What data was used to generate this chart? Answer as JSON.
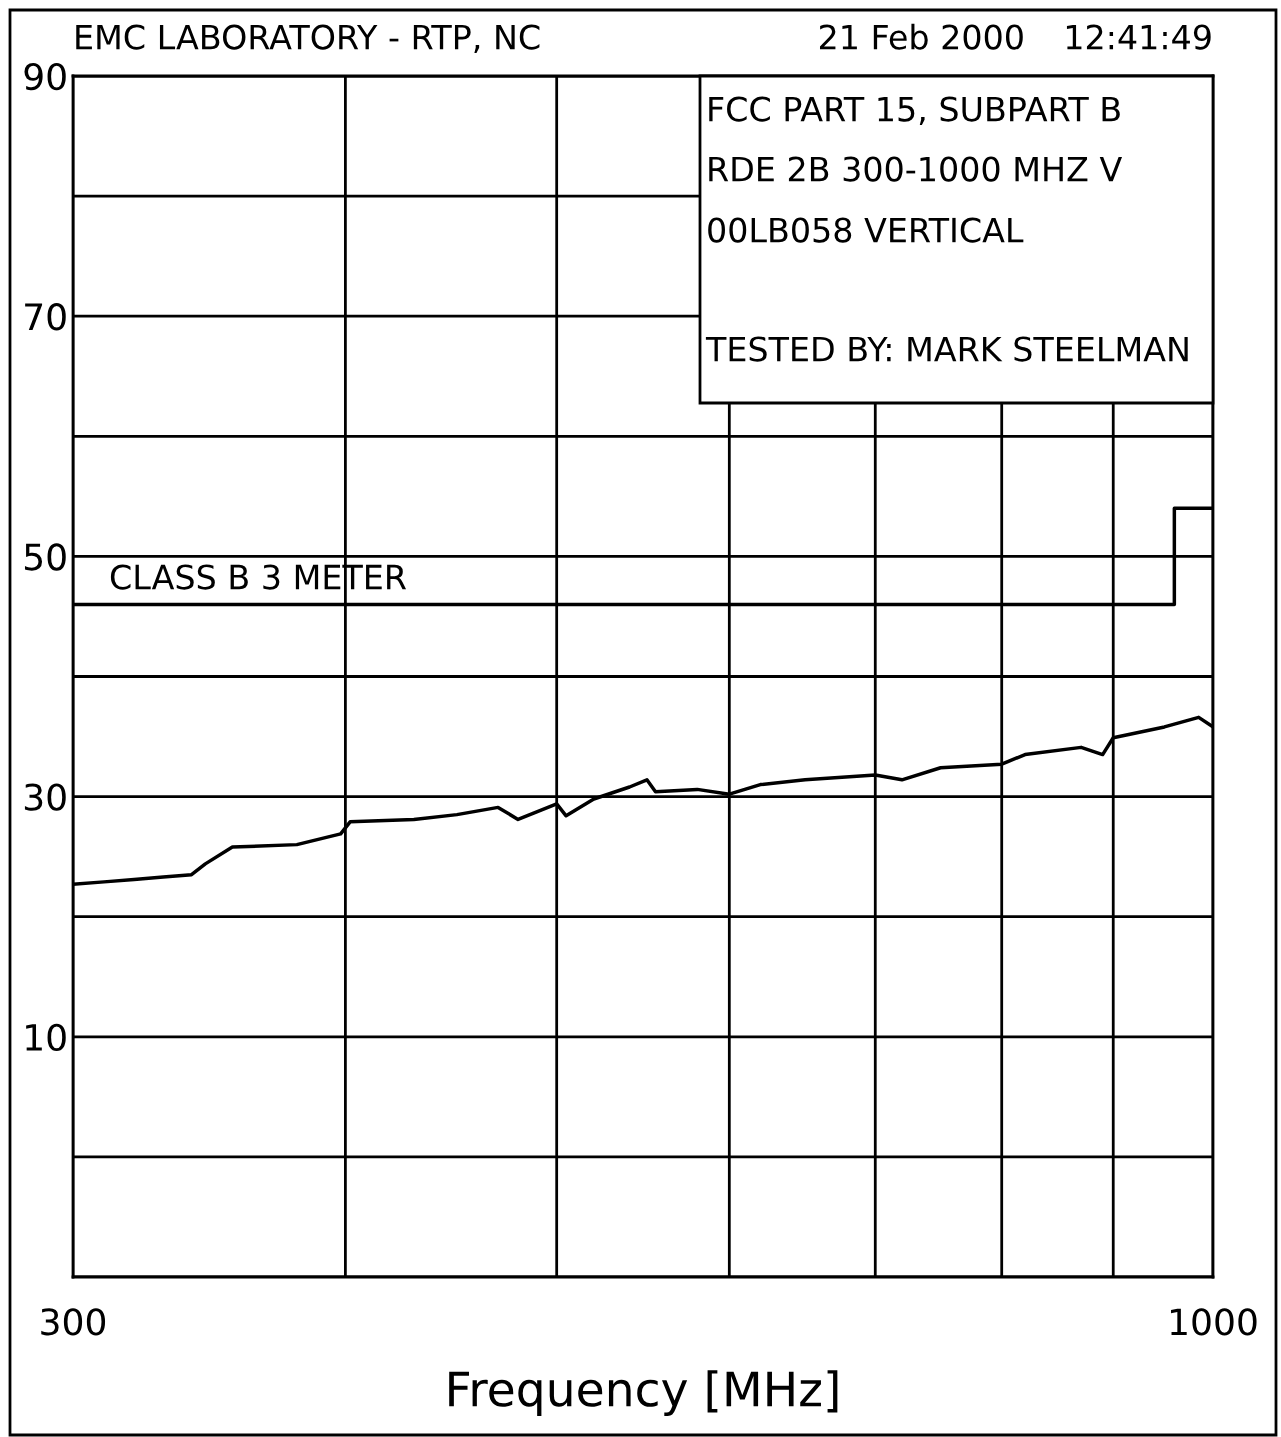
{
  "chart_data": {
    "type": "line",
    "title": "EMC LABORATORY - RTP, NC",
    "xlabel": "Frequency [MHz]",
    "annotations": [
      "21 Feb 2000",
      "12:41:49",
      "FCC PART 15, SUBPART B",
      "RDE 2B 300-1000 MHZ V",
      "00LB058 VERTICAL",
      "TESTED BY: MARK STEELMAN",
      {
        "text": "CLASS B 3 METER",
        "x": 308,
        "y": 46
      }
    ],
    "log": "x",
    "xlim": [
      300,
      1000
    ],
    "xticks": [
      300,
      {
        "value": 400,
        "label": null
      },
      {
        "value": 500,
        "label": null
      },
      {
        "value": 600,
        "label": null
      },
      {
        "value": 700,
        "label": null
      },
      {
        "value": 800,
        "label": null
      },
      {
        "value": 900,
        "label": null
      },
      1000
    ],
    "ylim": [
      -10,
      90
    ],
    "yticks": [
      {
        "value": -10,
        "label": null
      },
      {
        "value": 0,
        "label": null
      },
      10,
      {
        "value": 20,
        "label": null
      },
      30,
      {
        "value": 40,
        "label": null
      },
      50,
      {
        "value": 60,
        "label": null
      },
      70,
      {
        "value": 80,
        "label": null
      },
      90
    ],
    "grid": true,
    "series": [
      {
        "color": "#000000",
        "x": [
          300,
          310,
          320,
          330,
          340,
          345,
          355,
          380,
          398,
          402,
          430,
          450,
          470,
          480,
          500,
          505,
          520,
          540,
          550,
          555,
          580,
          600,
          620,
          650,
          700,
          720,
          750,
          800,
          820,
          870,
          890,
          900,
          950,
          985,
          1000
        ],
        "values": [
          22.7,
          22.9,
          23.1,
          23.3,
          23.5,
          24.4,
          25.8,
          26.0,
          26.9,
          27.9,
          28.1,
          28.5,
          29.1,
          28.1,
          29.4,
          28.4,
          29.8,
          30.8,
          31.4,
          30.4,
          30.6,
          30.2,
          31.0,
          31.4,
          31.8,
          31.4,
          32.4,
          32.7,
          33.5,
          34.1,
          33.5,
          34.9,
          35.8,
          36.6,
          35.8
        ]
      },
      {
        "color": "#000000",
        "x": [
          300,
          960,
          960,
          1000
        ],
        "values": [
          46,
          46,
          54,
          54
        ]
      }
    ]
  }
}
